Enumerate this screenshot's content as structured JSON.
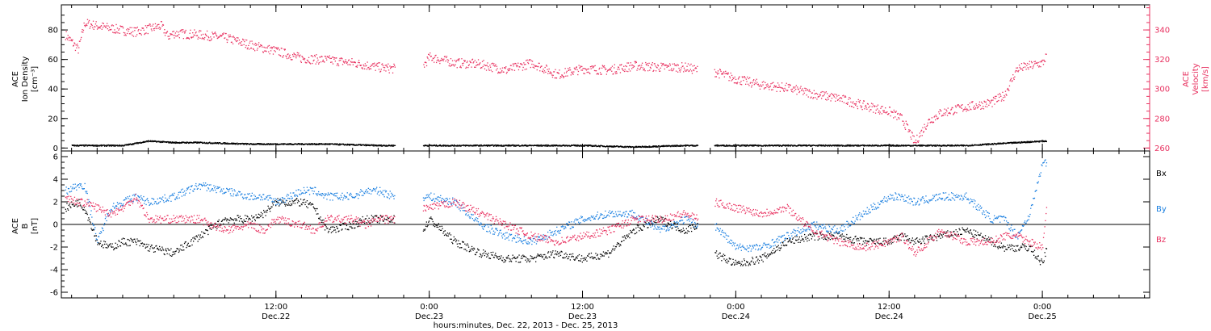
{
  "chart_data": [
    {
      "type": "scatter",
      "title": "",
      "ylabel_left": [
        "ACE",
        "Ion Density",
        "[cm⁻³]"
      ],
      "ylabel_right": [
        "ACE",
        "Velocity",
        "[km/s]"
      ],
      "ylim_left": [
        -2,
        97
      ],
      "ylim_right": [
        258,
        357
      ],
      "yticks_left": [
        0,
        20,
        40,
        60,
        80
      ],
      "yticks_right": [
        260,
        280,
        300,
        320,
        340
      ],
      "grid": false,
      "colors": {
        "density": "#000000",
        "velocity": "#e8305f"
      },
      "data_gaps_hours": [
        [
          21.3,
          23.5
        ],
        [
          45.0,
          46.3
        ]
      ],
      "series": [
        {
          "axis": "left",
          "color": "#000000",
          "x": [
            -4,
            0,
            2,
            4,
            6,
            10,
            12,
            14,
            16,
            20,
            21.3,
            23.5,
            26,
            30,
            34,
            36,
            40,
            44,
            45,
            46.3,
            50,
            54,
            58,
            62,
            64,
            66,
            68,
            70,
            72,
            72.3
          ],
          "y": [
            2,
            2,
            5,
            4,
            4,
            3,
            3,
            3,
            3,
            2,
            2,
            2,
            2,
            2,
            2,
            2,
            1,
            2,
            2,
            2,
            2,
            2,
            2,
            2,
            2,
            2,
            3,
            4,
            5,
            5
          ]
        },
        {
          "axis": "right",
          "color": "#e8305f",
          "x": [
            -4.5,
            -3.5,
            -3,
            -2,
            0,
            1,
            2,
            3,
            3.5,
            4,
            6,
            8,
            10,
            12,
            14,
            16,
            18,
            20,
            21.3,
            23.5,
            24,
            26,
            28,
            30,
            32,
            34,
            36,
            38,
            40,
            42,
            44,
            45,
            46.3,
            48,
            50,
            52,
            54,
            56,
            58,
            60,
            61,
            62,
            63,
            64,
            66,
            68,
            69,
            70,
            72,
            72.3
          ],
          "y": [
            337,
            327,
            345,
            343,
            340,
            339,
            341,
            343,
            336,
            338,
            337,
            335,
            330,
            326,
            321,
            320,
            318,
            315,
            314,
            316,
            322,
            318,
            317,
            313,
            318,
            310,
            314,
            313,
            316,
            315,
            315,
            313,
            312,
            307,
            303,
            301,
            297,
            294,
            289,
            285,
            280,
            264,
            278,
            284,
            288,
            291,
            296,
            314,
            318,
            323
          ]
        }
      ]
    },
    {
      "type": "scatter",
      "title": "",
      "ylabel_left": [
        "ACE",
        "B",
        "[nT]"
      ],
      "ylim": [
        -6.5,
        6.5
      ],
      "yticks": [
        -6,
        -4,
        -2,
        0,
        2,
        4,
        6
      ],
      "zero_line": true,
      "grid": false,
      "legend": {
        "placement": "right",
        "entries": [
          "Bx",
          "By",
          "Bz"
        ]
      },
      "series": [
        {
          "name": "Bx",
          "color": "#000000",
          "x": [
            -4.5,
            -3.5,
            -3,
            -2,
            -1,
            0,
            1,
            2,
            4,
            6,
            8,
            10,
            11,
            12,
            14,
            15,
            16,
            18,
            19,
            20,
            21.3,
            23.5,
            24,
            26,
            28,
            30,
            32,
            34,
            36,
            38,
            40,
            42,
            44,
            45,
            46.3,
            48,
            50,
            52,
            54,
            56,
            58,
            60,
            61,
            62,
            64,
            66,
            68,
            69,
            70,
            71,
            72,
            72.3
          ],
          "y": [
            1.5,
            2.0,
            1.5,
            -1.5,
            -2,
            -1.5,
            -1.5,
            -2.0,
            -2.5,
            -1.0,
            0.5,
            0.5,
            1.0,
            2.0,
            2.0,
            1.5,
            -0.5,
            0.0,
            0.5,
            0.5,
            0.5,
            -0.5,
            0.5,
            -1.5,
            -2.5,
            -3.0,
            -3.0,
            -2.5,
            -3.0,
            -2.5,
            -0.5,
            0.5,
            -0.5,
            0.0,
            -2.5,
            -3.5,
            -3.0,
            -1.5,
            -1.0,
            -1.0,
            -1.5,
            -1.5,
            -1.0,
            -1.5,
            -1.0,
            -0.5,
            -1.5,
            -2.0,
            -2.0,
            -2.0,
            -3.5,
            -2.0
          ]
        },
        {
          "name": "By",
          "color": "#1a7fe0",
          "x": [
            -4.5,
            -3.5,
            -3,
            -2,
            -1,
            0,
            1,
            2,
            4,
            6,
            8,
            10,
            11,
            12,
            14,
            15,
            16,
            18,
            19,
            20,
            21.3,
            23.5,
            24,
            26,
            28,
            30,
            32,
            34,
            36,
            38,
            40,
            42,
            44,
            45,
            46.3,
            48,
            50,
            52,
            54,
            56,
            58,
            60,
            61,
            62,
            64,
            66,
            68,
            69,
            70,
            71,
            72,
            72.3
          ],
          "y": [
            3.0,
            3.5,
            3.5,
            -1.5,
            1.5,
            2.0,
            2.5,
            2.0,
            2.5,
            3.5,
            3.0,
            2.5,
            2.5,
            2.0,
            3.0,
            3.0,
            2.5,
            2.5,
            3.0,
            3.0,
            2.5,
            2.5,
            2.5,
            2.0,
            0.0,
            -1.0,
            -1.5,
            -0.5,
            0.5,
            1.0,
            1.0,
            -0.5,
            0.5,
            0.0,
            0.0,
            -2.0,
            -2.0,
            -1.0,
            0.0,
            -0.5,
            1.0,
            2.5,
            2.5,
            2.0,
            2.5,
            2.5,
            0.5,
            0.5,
            -1.0,
            1.0,
            5.5,
            5.5
          ]
        },
        {
          "name": "Bz",
          "color": "#e8305f",
          "x": [
            -4.5,
            -3.5,
            -3,
            -2,
            -1,
            0,
            1,
            2,
            4,
            6,
            8,
            10,
            11,
            12,
            14,
            15,
            16,
            18,
            19,
            20,
            21.3,
            23.5,
            24,
            26,
            28,
            30,
            32,
            34,
            36,
            38,
            40,
            42,
            44,
            45,
            46.3,
            48,
            50,
            52,
            54,
            56,
            58,
            60,
            61,
            62,
            64,
            66,
            68,
            69,
            70,
            71,
            72,
            72.3
          ],
          "y": [
            2.5,
            2.0,
            2.0,
            1.5,
            1.0,
            1.5,
            2.5,
            0.5,
            0.5,
            0.5,
            -0.5,
            0.0,
            -0.5,
            0.5,
            0.0,
            -0.5,
            0.5,
            0.5,
            0.0,
            0.5,
            0.5,
            1.5,
            1.5,
            2.0,
            1.0,
            0.0,
            -1.0,
            -1.5,
            -1.0,
            -0.5,
            0.5,
            0.5,
            1.0,
            0.5,
            2.0,
            1.5,
            1.0,
            1.5,
            -0.5,
            -1.5,
            -2.0,
            -1.5,
            -1.0,
            -2.5,
            -0.5,
            -1.5,
            -1.5,
            -1.0,
            -1.0,
            -1.5,
            -2.0,
            1.5
          ]
        }
      ]
    }
  ],
  "x_axis": {
    "range_hours": [
      -4.8,
      80.4
    ],
    "major_tick_hours": [
      12,
      24,
      36,
      48,
      60,
      72
    ],
    "minor_tick_step_hours": 2,
    "tick_labels": [
      {
        "time": "12:00",
        "date": "Dec.22"
      },
      {
        "time": "0:00",
        "date": "Dec.23"
      },
      {
        "time": "12:00",
        "date": "Dec.23"
      },
      {
        "time": "0:00",
        "date": "Dec.24"
      },
      {
        "time": "12:00",
        "date": "Dec.24"
      },
      {
        "time": "0:00",
        "date": "Dec.25"
      }
    ],
    "title": "hours:minutes, Dec. 22, 2013 - Dec. 25, 2013"
  }
}
